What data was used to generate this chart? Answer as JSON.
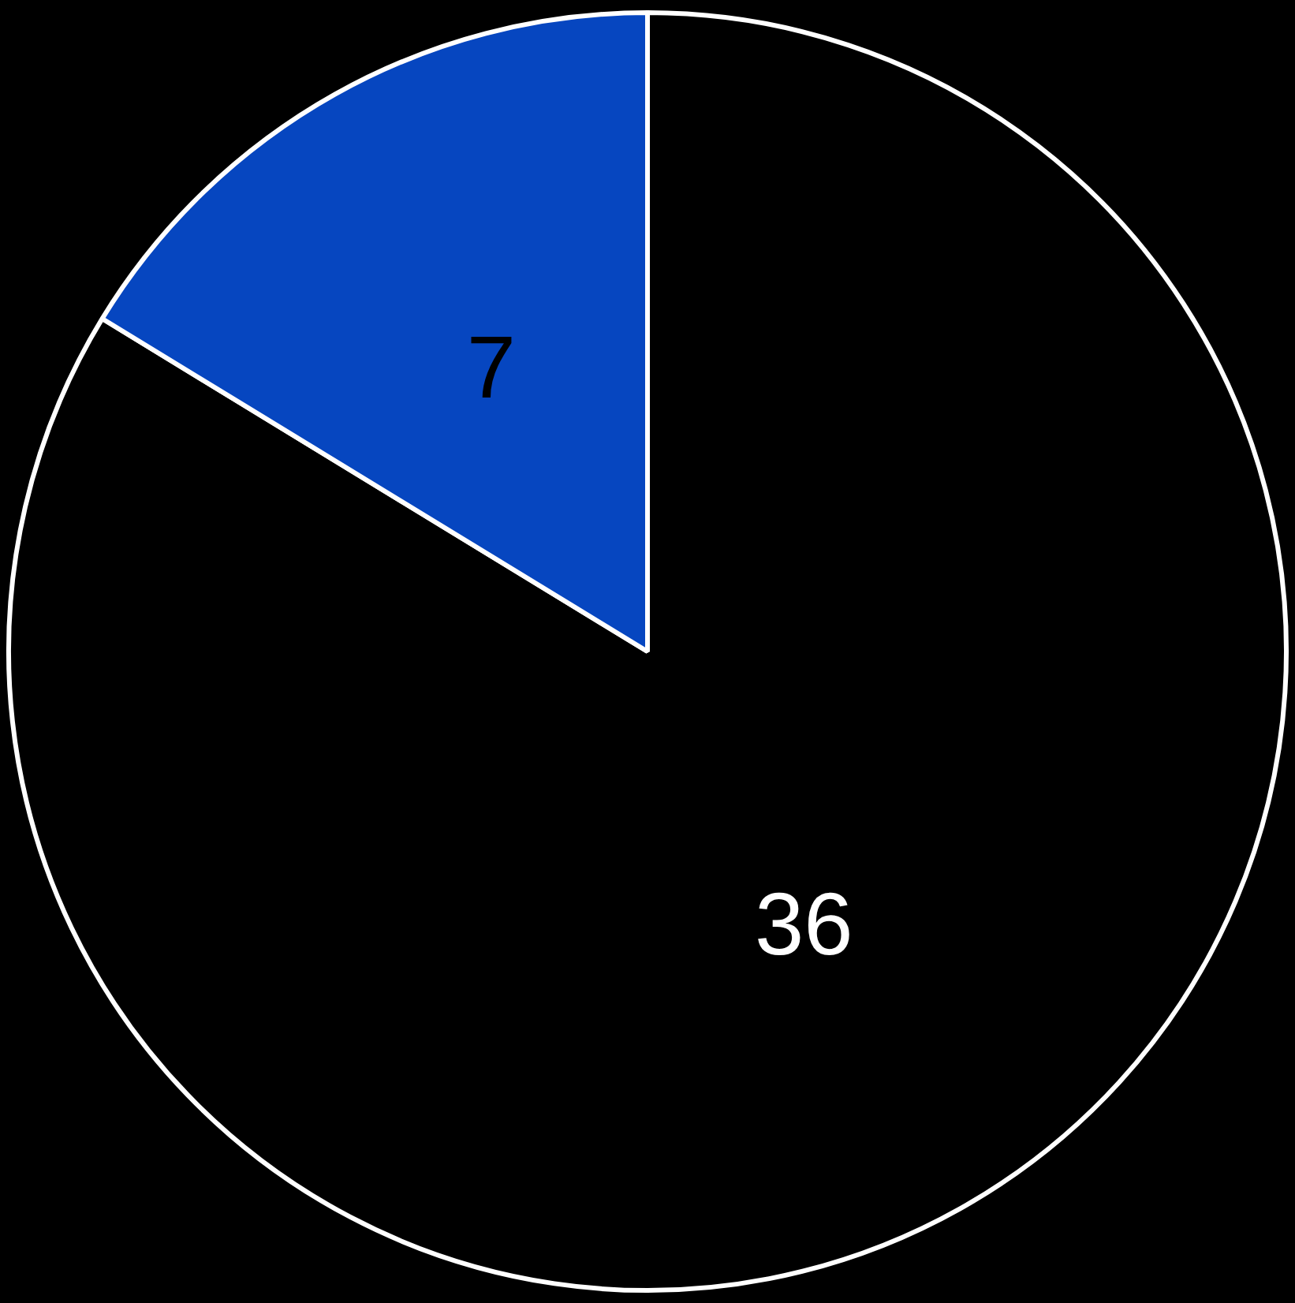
{
  "chart_data": {
    "type": "pie",
    "categories": [
      null,
      null
    ],
    "values": [
      36,
      7
    ],
    "colors": [
      "#000000",
      "#0646c0"
    ],
    "data_labels": true,
    "legend": false
  }
}
